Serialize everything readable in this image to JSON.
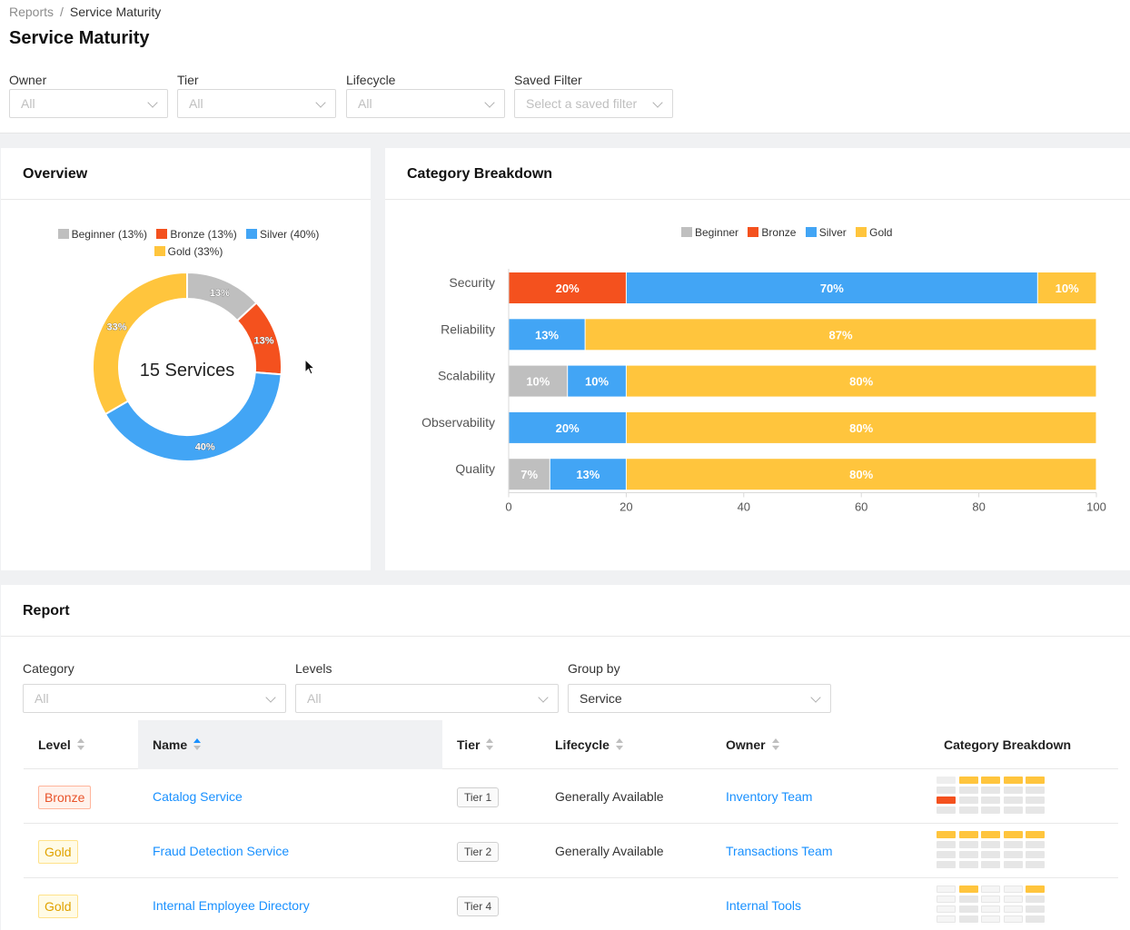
{
  "breadcrumb": {
    "root": "Reports",
    "current": "Service Maturity"
  },
  "page_title": "Service Maturity",
  "filters": [
    {
      "label": "Owner",
      "value": "All"
    },
    {
      "label": "Tier",
      "value": "All"
    },
    {
      "label": "Lifecycle",
      "value": "All"
    },
    {
      "label": "Saved Filter",
      "value": "Select a saved filter"
    }
  ],
  "colors": {
    "beginner": "#bfbfbf",
    "bronze": "#f4511e",
    "silver": "#42a5f5",
    "gold": "#ffc53d"
  },
  "overview": {
    "title": "Overview",
    "center_label": "15 Services",
    "legend": [
      "Beginner (13%)",
      "Bronze (13%)",
      "Silver (40%)",
      "Gold (33%)"
    ]
  },
  "category_breakdown": {
    "title": "Category Breakdown",
    "legend": [
      "Beginner",
      "Bronze",
      "Silver",
      "Gold"
    ]
  },
  "chart_data": [
    {
      "type": "pie",
      "title": "Overview",
      "center_label": "15 Services",
      "labels": [
        "Beginner",
        "Bronze",
        "Silver",
        "Gold"
      ],
      "values": [
        13,
        13,
        40,
        33
      ],
      "value_labels": [
        "13%",
        "13%",
        "40%",
        "33%"
      ],
      "legend_position": "top"
    },
    {
      "type": "bar",
      "orientation": "horizontal",
      "stacked": true,
      "title": "Category Breakdown",
      "categories": [
        "Security",
        "Reliability",
        "Scalability",
        "Observability",
        "Quality"
      ],
      "series": [
        {
          "name": "Beginner",
          "values": [
            0,
            0,
            10,
            0,
            7
          ]
        },
        {
          "name": "Bronze",
          "values": [
            20,
            0,
            0,
            0,
            0
          ]
        },
        {
          "name": "Silver",
          "values": [
            70,
            13,
            10,
            20,
            13
          ]
        },
        {
          "name": "Gold",
          "values": [
            10,
            87,
            80,
            80,
            80
          ]
        }
      ],
      "xlim": [
        0,
        100
      ],
      "xticks": [
        0,
        20,
        40,
        60,
        80,
        100
      ],
      "legend_position": "top"
    }
  ],
  "report": {
    "title": "Report",
    "filters": [
      {
        "label": "Category",
        "value": "All"
      },
      {
        "label": "Levels",
        "value": "All"
      },
      {
        "label": "Group by",
        "value": "Service"
      }
    ],
    "columns": [
      "Level",
      "Name",
      "Tier",
      "Lifecycle",
      "Owner",
      "Category Breakdown"
    ],
    "rows": [
      {
        "level": "Bronze",
        "name": "Catalog Service",
        "tier": "Tier 1",
        "lifecycle": "Generally Available",
        "owner": "Inventory Team"
      },
      {
        "level": "Gold",
        "name": "Fraud Detection Service",
        "tier": "Tier 2",
        "lifecycle": "Generally Available",
        "owner": "Transactions Team"
      },
      {
        "level": "Gold",
        "name": "Internal Employee Directory",
        "tier": "Tier 4",
        "lifecycle": "",
        "owner": "Internal Tools"
      }
    ]
  }
}
